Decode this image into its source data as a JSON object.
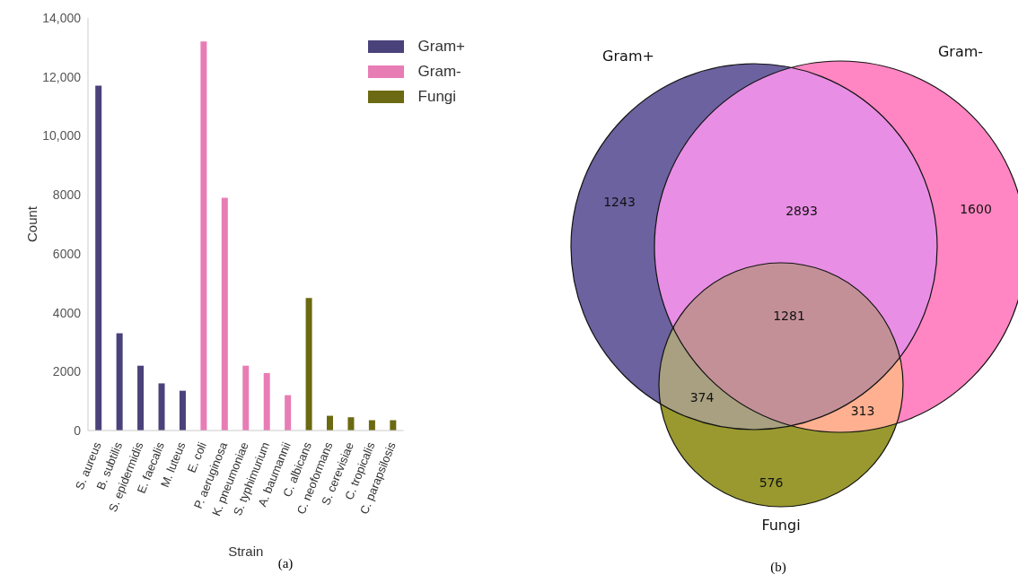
{
  "chart_data": [
    {
      "type": "bar",
      "xlabel": "Strain",
      "ylabel": "Count",
      "categories": [
        "S. aureus",
        "B. subtilis",
        "S. epidermidis",
        "E. faecalis",
        "M. luteus",
        "E. coli",
        "P. aeruginosa",
        "K. pneumoniae",
        "S. typhimurium",
        "A. baumannii",
        "C. albicans",
        "C. neoformans",
        "S. cerevisiae",
        "C. tropicalis",
        "C. parapsilosis"
      ],
      "series": [
        {
          "name": "Gram+",
          "color": "#4a427a",
          "values": [
            11700,
            3300,
            2200,
            1600,
            1350,
            null,
            null,
            null,
            null,
            null,
            null,
            null,
            null,
            null,
            null
          ]
        },
        {
          "name": "Gram-",
          "color": "#e87db5",
          "values": [
            null,
            null,
            null,
            null,
            null,
            13200,
            7900,
            2200,
            1950,
            1200,
            null,
            null,
            null,
            null,
            null
          ]
        },
        {
          "name": "Fungi",
          "color": "#6b6a12",
          "values": [
            null,
            null,
            null,
            null,
            null,
            null,
            null,
            null,
            null,
            null,
            4500,
            500,
            450,
            350,
            350
          ]
        }
      ],
      "ylim": [
        0,
        14000
      ],
      "yticks": [
        0,
        2000,
        4000,
        6000,
        8000,
        {
          "value": 10000,
          "label": "10,000"
        },
        {
          "value": 12000,
          "label": "12,000"
        },
        {
          "value": 14000,
          "label": "14,000"
        }
      ],
      "legend": "top right",
      "annotations": [
        "(a)"
      ]
    },
    {
      "type": "other",
      "categories": [
        null,
        null,
        null,
        null,
        null,
        null,
        null
      ],
      "colors": [
        "#6c62a0",
        "#e88ee4",
        "#ff86c2",
        "#c49098",
        "#a8a080",
        "#ffb090",
        "#999930"
      ],
      "values": [
        1243,
        2893,
        1600,
        1281,
        374,
        313,
        576
      ],
      "data_labels": true,
      "annotations": [
        "Gram+",
        "Gram-",
        "Fungi",
        "(b)"
      ]
    }
  ]
}
